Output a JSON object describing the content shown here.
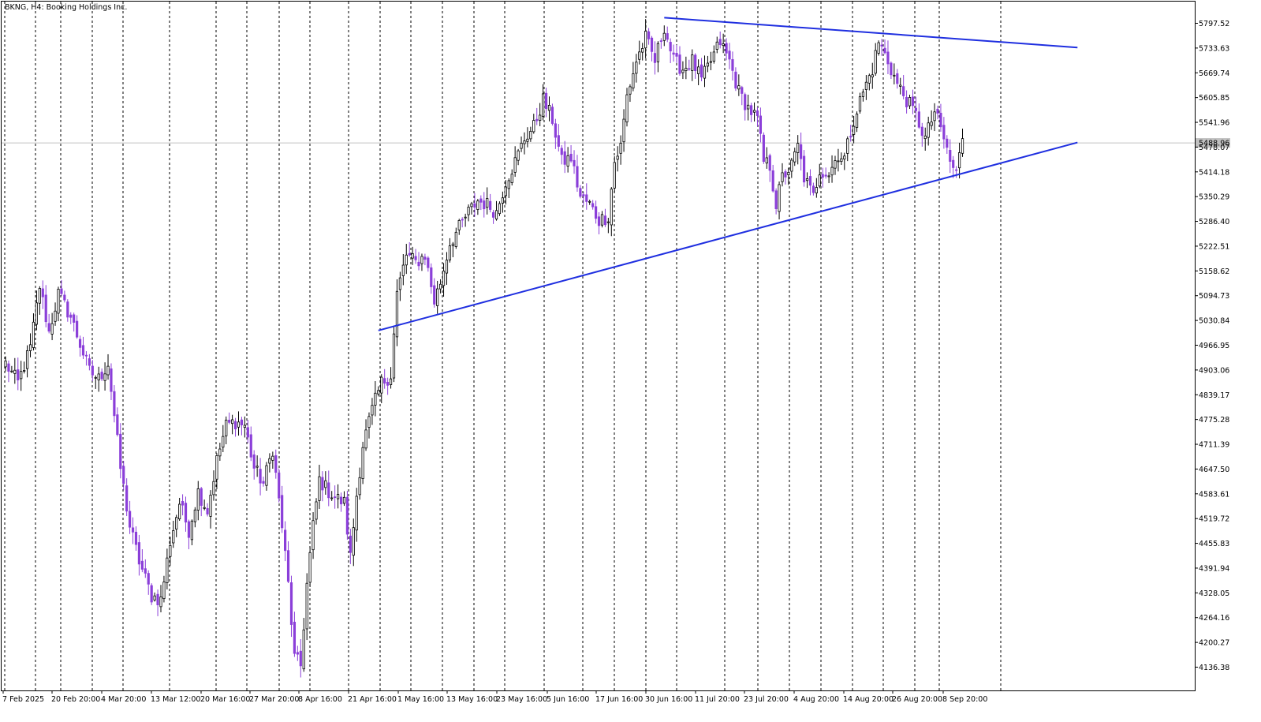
{
  "chart_data": {
    "type": "candlestick",
    "title": "BKNG, H4:  Booking Holdings Inc.",
    "symbol": "BKNG",
    "timeframe": "H4",
    "instrument_name": "Booking Holdings Inc.",
    "current_price_label": "5488.96",
    "current_price": 5488.96,
    "ylim": [
      4090,
      5830
    ],
    "y_ticks": [
      "5797.52",
      "5733.63",
      "5669.74",
      "5605.85",
      "5541.96",
      "5478.07",
      "5414.18",
      "5350.29",
      "5286.40",
      "5222.51",
      "5158.62",
      "5094.73",
      "5030.84",
      "4966.95",
      "4903.06",
      "4839.17",
      "4775.28",
      "4711.39",
      "4647.50",
      "4583.61",
      "4519.72",
      "4455.83",
      "4391.94",
      "4328.05",
      "4264.16",
      "4200.27",
      "4136.38"
    ],
    "x_tick_labels": [
      "7 Feb 2025",
      "20 Feb 20:00",
      "4 Mar 20:00",
      "13 Mar 12:00",
      "20 Mar 16:00",
      "27 Mar 20:00",
      "8 Apr 16:00",
      "21 Apr 16:00",
      "1 May 16:00",
      "13 May 16:00",
      "23 May 16:00",
      "5 Jun 16:00",
      "17 Jun 16:00",
      "30 Jun 16:00",
      "11 Jul 20:00",
      "23 Jul 20:00",
      "4 Aug 20:00",
      "14 Aug 20:00",
      "26 Aug 20:00",
      "8 Sep 20:00"
    ],
    "grid": "vertical dashed",
    "bull_color": "#000000",
    "bear_color": "#8B3FD9",
    "trendline_color": "#1F2FE0",
    "trendlines": [
      {
        "name": "resistance",
        "from_bar": 212,
        "from_price": 5812,
        "to_bar": 345,
        "to_price": 5735
      },
      {
        "name": "support",
        "from_bar": 120,
        "from_price": 5005,
        "to_bar": 345,
        "to_price": 5490
      }
    ],
    "anchors": [
      [
        0,
        4920
      ],
      [
        4,
        4870
      ],
      [
        8,
        4960
      ],
      [
        11,
        5120
      ],
      [
        14,
        5000
      ],
      [
        17,
        5100
      ],
      [
        21,
        5040
      ],
      [
        27,
        4900
      ],
      [
        30,
        4880
      ],
      [
        33,
        4920
      ],
      [
        37,
        4650
      ],
      [
        40,
        4500
      ],
      [
        43,
        4410
      ],
      [
        47,
        4320
      ],
      [
        50,
        4310
      ],
      [
        53,
        4460
      ],
      [
        56,
        4560
      ],
      [
        59,
        4490
      ],
      [
        62,
        4590
      ],
      [
        65,
        4540
      ],
      [
        68,
        4670
      ],
      [
        71,
        4760
      ],
      [
        74,
        4770
      ],
      [
        77,
        4760
      ],
      [
        80,
        4650
      ],
      [
        83,
        4610
      ],
      [
        86,
        4700
      ],
      [
        89,
        4500
      ],
      [
        91,
        4350
      ],
      [
        93,
        4160
      ],
      [
        95,
        4140
      ],
      [
        97,
        4350
      ],
      [
        99,
        4500
      ],
      [
        101,
        4620
      ],
      [
        104,
        4590
      ],
      [
        107,
        4570
      ],
      [
        109,
        4560
      ],
      [
        111,
        4420
      ],
      [
        113,
        4580
      ],
      [
        115,
        4710
      ],
      [
        118,
        4800
      ],
      [
        121,
        4870
      ],
      [
        124,
        4890
      ],
      [
        126,
        5100
      ],
      [
        129,
        5200
      ],
      [
        132,
        5180
      ],
      [
        135,
        5200
      ],
      [
        138,
        5080
      ],
      [
        140,
        5130
      ],
      [
        143,
        5230
      ],
      [
        146,
        5270
      ],
      [
        149,
        5310
      ],
      [
        152,
        5340
      ],
      [
        155,
        5330
      ],
      [
        158,
        5310
      ],
      [
        161,
        5390
      ],
      [
        164,
        5440
      ],
      [
        167,
        5500
      ],
      [
        170,
        5530
      ],
      [
        173,
        5600
      ],
      [
        176,
        5550
      ],
      [
        179,
        5440
      ],
      [
        182,
        5450
      ],
      [
        185,
        5350
      ],
      [
        188,
        5330
      ],
      [
        191,
        5290
      ],
      [
        194,
        5300
      ],
      [
        196,
        5440
      ],
      [
        198,
        5480
      ],
      [
        200,
        5610
      ],
      [
        203,
        5700
      ],
      [
        206,
        5760
      ],
      [
        209,
        5700
      ],
      [
        212,
        5790
      ],
      [
        215,
        5700
      ],
      [
        218,
        5680
      ],
      [
        221,
        5700
      ],
      [
        224,
        5650
      ],
      [
        227,
        5700
      ],
      [
        230,
        5750
      ],
      [
        233,
        5700
      ],
      [
        236,
        5620
      ],
      [
        239,
        5580
      ],
      [
        242,
        5550
      ],
      [
        244,
        5440
      ],
      [
        246,
        5430
      ],
      [
        248,
        5330
      ],
      [
        250,
        5400
      ],
      [
        253,
        5430
      ],
      [
        255,
        5480
      ],
      [
        257,
        5400
      ],
      [
        260,
        5350
      ],
      [
        262,
        5420
      ],
      [
        265,
        5410
      ],
      [
        268,
        5460
      ],
      [
        270,
        5450
      ],
      [
        273,
        5550
      ],
      [
        276,
        5620
      ],
      [
        279,
        5680
      ],
      [
        281,
        5750
      ],
      [
        284,
        5700
      ],
      [
        287,
        5640
      ],
      [
        290,
        5600
      ],
      [
        293,
        5560
      ],
      [
        296,
        5500
      ],
      [
        299,
        5570
      ],
      [
        302,
        5500
      ],
      [
        304,
        5440
      ],
      [
        306,
        5410
      ],
      [
        308,
        5500
      ]
    ]
  }
}
